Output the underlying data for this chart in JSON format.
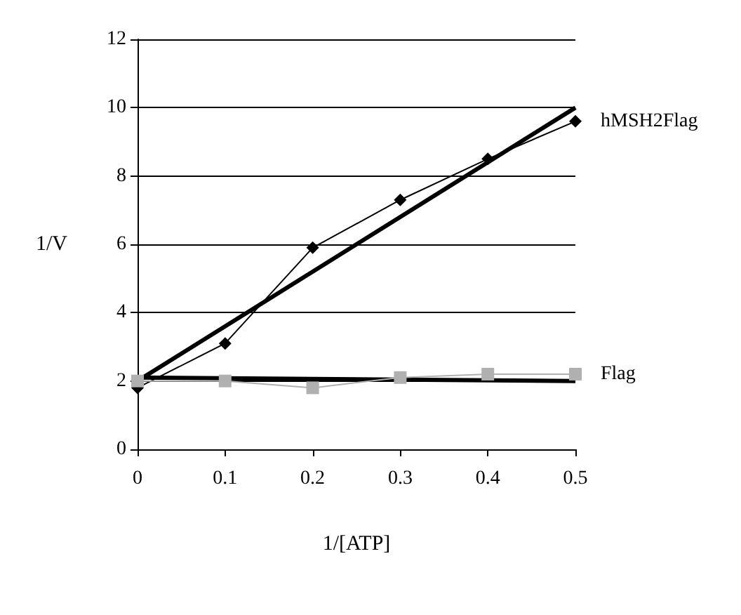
{
  "chart_data": {
    "type": "line",
    "xlabel": "1/[ATP]",
    "ylabel": "1/V",
    "xlim": [
      0,
      0.5
    ],
    "xticks": [
      0,
      0.1,
      0.2,
      0.3,
      0.4,
      0.5
    ],
    "ylim": [
      0,
      12
    ],
    "yticks": [
      0,
      2,
      4,
      6,
      8,
      10,
      12
    ],
    "grid": "y",
    "legend": false,
    "series": [
      {
        "name": "hMSH2Flag",
        "color": "#000000",
        "marker": "diamond",
        "x": [
          0,
          0.1,
          0.2,
          0.3,
          0.4,
          0.5
        ],
        "values": [
          1.8,
          3.1,
          5.9,
          7.3,
          8.5,
          9.6
        ]
      },
      {
        "name": "Flag",
        "color": "#b0b0b0",
        "marker": "square",
        "x": [
          0,
          0.1,
          0.2,
          0.3,
          0.4,
          0.5
        ],
        "values": [
          2.0,
          2.0,
          1.8,
          2.1,
          2.2,
          2.2
        ]
      },
      {
        "color": "#000000",
        "marker": "none",
        "x": [
          0,
          0.5
        ],
        "values": [
          2.0,
          10.0
        ]
      },
      {
        "color": "#000000",
        "marker": "none",
        "x": [
          0,
          0.5
        ],
        "values": [
          2.1,
          2.0
        ]
      }
    ]
  }
}
